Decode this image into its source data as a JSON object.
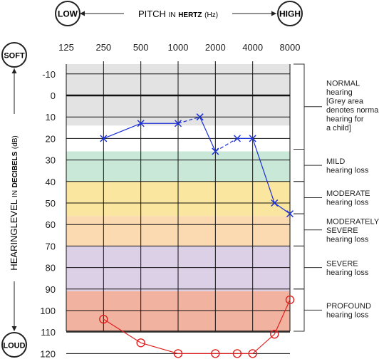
{
  "header": {
    "pitch_prefix": "PITCH",
    "pitch_in": "IN",
    "pitch_unit": "HERTZ",
    "pitch_abbr": "(Hz)",
    "low_badge": "LOW",
    "high_badge": "HIGH",
    "soft_badge": "SOFT",
    "loud_badge": "LOUD",
    "ylabel_main": "HEARINGLEVEL",
    "ylabel_in": "IN",
    "ylabel_unit": "DECIBELS",
    "ylabel_abbr": "(dB)"
  },
  "chart_data": {
    "type": "line",
    "x_ticks": [
      "125",
      "250",
      "500",
      "1000",
      "2000",
      "4000",
      "8000"
    ],
    "x_scale": "log2",
    "y_ticks": [
      -10,
      0,
      10,
      20,
      30,
      40,
      50,
      60,
      70,
      80,
      90,
      100,
      110,
      120
    ],
    "ylim": [
      -15,
      120
    ],
    "y_inverted": true,
    "bands": [
      {
        "from": -15,
        "to": 14,
        "color": "#e3e3e3"
      },
      {
        "from": 26,
        "to": 40,
        "color": "#c9e8d8"
      },
      {
        "from": 40,
        "to": 56,
        "color": "#fbe6a0"
      },
      {
        "from": 56,
        "to": 70,
        "color": "#fbdab2"
      },
      {
        "from": 70,
        "to": 91,
        "color": "#dcd0e6"
      },
      {
        "from": 91,
        "to": 120,
        "color": "#f2b2a0"
      }
    ],
    "categories": [
      {
        "lines": [
          "NORMAL",
          "hearing",
          "[Grey area",
          "denotes normal",
          "hearing for",
          "a child]"
        ],
        "from": -15,
        "to": 25
      },
      {
        "lines": [
          "MILD",
          "hearing loss"
        ],
        "from": 25,
        "to": 40
      },
      {
        "lines": [
          "MODERATE",
          "hearing loss"
        ],
        "from": 40,
        "to": 55
      },
      {
        "lines": [
          "MODERATELY",
          "SEVERE",
          "hearing loss"
        ],
        "from": 55,
        "to": 70
      },
      {
        "lines": [
          "SEVERE",
          "hearing loss"
        ],
        "from": 70,
        "to": 90
      },
      {
        "lines": [
          "PROFOUND",
          "hearing loss"
        ],
        "from": 90,
        "to": 120
      }
    ],
    "series": [
      {
        "marker": "x",
        "color": "#1a2fd6",
        "points": [
          [
            250,
            20
          ],
          [
            500,
            13
          ],
          [
            1000,
            13
          ],
          [
            1500,
            10
          ],
          [
            2000,
            26
          ],
          [
            3000,
            20
          ],
          [
            4000,
            20
          ],
          [
            6000,
            50
          ],
          [
            8000,
            55
          ]
        ],
        "dashed_segments": [
          2,
          4
        ]
      },
      {
        "marker": "o",
        "color": "#e02020",
        "points": [
          [
            250,
            104
          ],
          [
            500,
            115
          ],
          [
            1000,
            120
          ],
          [
            2000,
            120
          ],
          [
            3000,
            120
          ],
          [
            4000,
            120
          ],
          [
            6000,
            111
          ],
          [
            8000,
            95
          ]
        ],
        "dashed_segments": []
      }
    ]
  }
}
